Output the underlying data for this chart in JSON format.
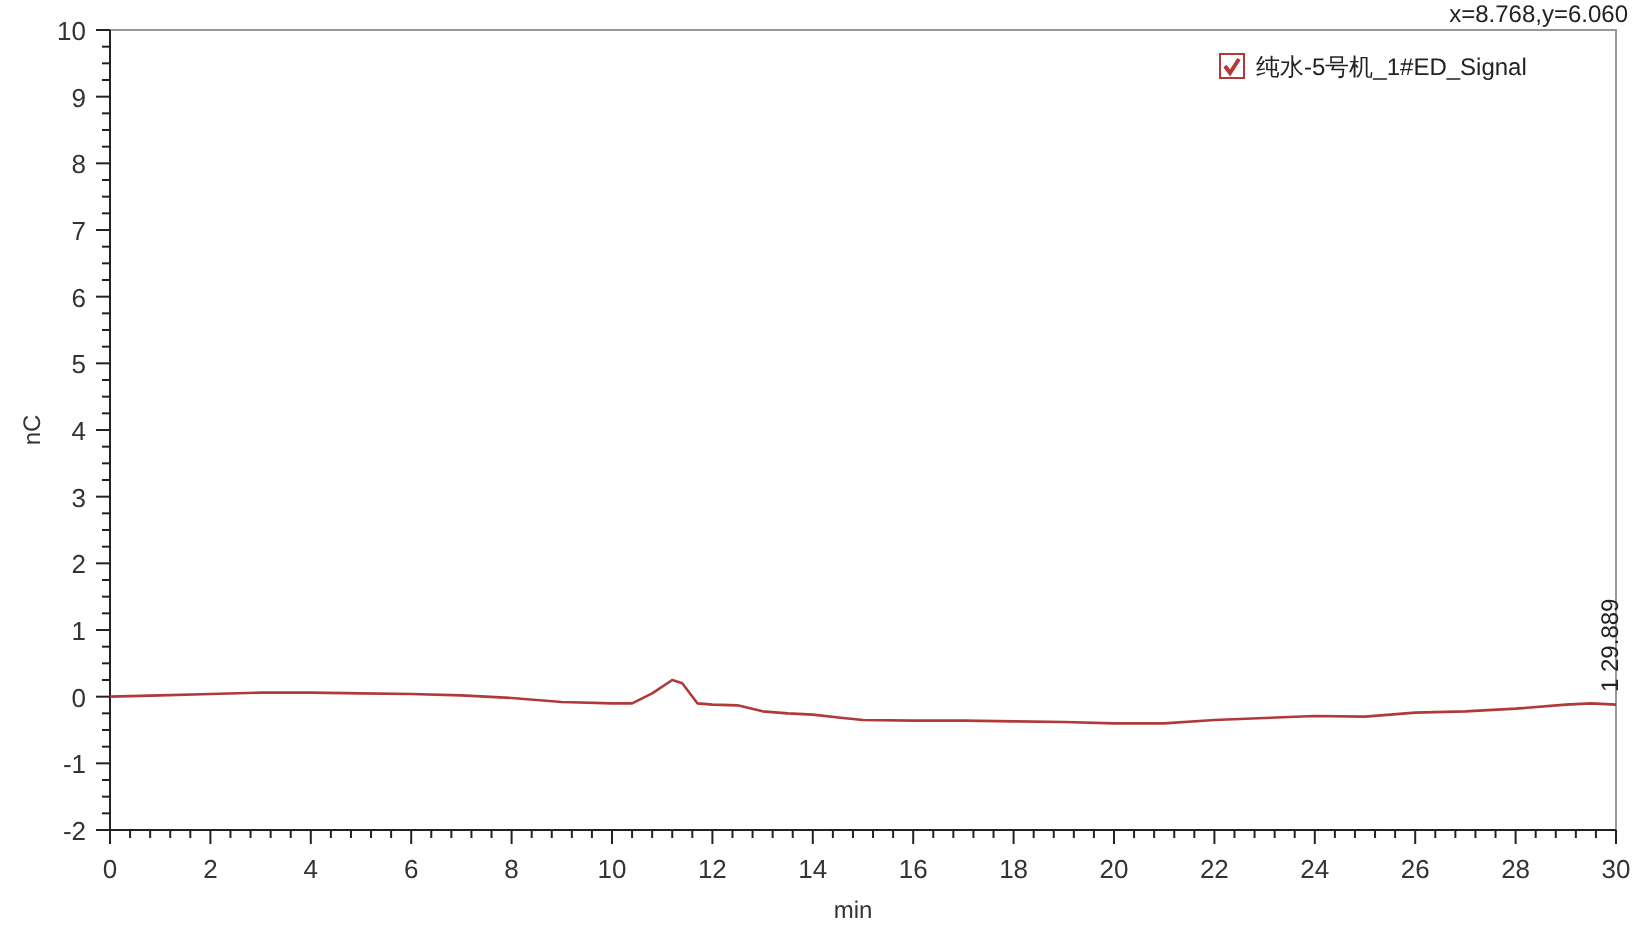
{
  "chart_data": {
    "type": "line",
    "xlabel": "min",
    "ylabel": "nC",
    "x": [
      0,
      1,
      2,
      3,
      4,
      5,
      6,
      7,
      8,
      9,
      10,
      10.4,
      10.8,
      11.2,
      11.4,
      11.7,
      12,
      12.5,
      13,
      13.5,
      14,
      14.6,
      15,
      16,
      17,
      18,
      19,
      20,
      21,
      22,
      23,
      24,
      25,
      26,
      27,
      28,
      29,
      29.5,
      30
    ],
    "series": [
      {
        "name": "纯水-5号机_1#ED_Signal",
        "color": "#b03a3a",
        "values": [
          0,
          0.02,
          0.04,
          0.06,
          0.06,
          0.05,
          0.04,
          0.02,
          -0.02,
          -0.08,
          -0.1,
          -0.1,
          0.05,
          0.25,
          0.2,
          -0.1,
          -0.12,
          -0.13,
          -0.22,
          -0.25,
          -0.27,
          -0.32,
          -0.35,
          -0.36,
          -0.36,
          -0.37,
          -0.38,
          -0.4,
          -0.4,
          -0.35,
          -0.32,
          -0.29,
          -0.3,
          -0.24,
          -0.22,
          -0.18,
          -0.12,
          -0.1,
          -0.12
        ]
      }
    ],
    "xlim": [
      0,
      30
    ],
    "xticks": [
      0,
      2,
      4,
      6,
      8,
      10,
      12,
      14,
      16,
      18,
      20,
      22,
      24,
      26,
      28,
      30
    ],
    "ylim": [
      -2,
      10
    ],
    "yticks": [
      -2,
      -1,
      0,
      1,
      2,
      3,
      4,
      5,
      6,
      7,
      8,
      9,
      10
    ],
    "annotations": [
      "x=8.768,y=6.060",
      {
        "text": "1  29.889",
        "x": 29.889,
        "y": -0.11
      }
    ],
    "legend": "top right",
    "grid": false,
    "marker": "none",
    "line_style": "solid"
  }
}
